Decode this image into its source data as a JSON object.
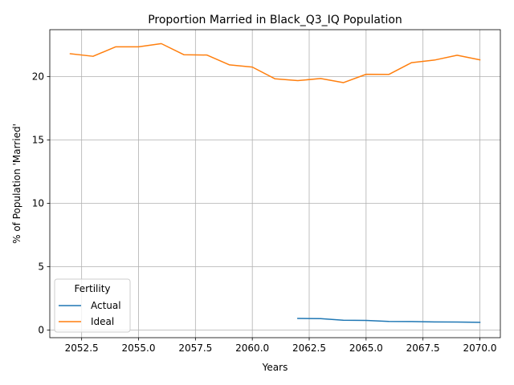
{
  "chart_data": {
    "type": "line",
    "title": "Proportion Married in Black_Q3_IQ Population",
    "xlabel": "Years",
    "ylabel": "% of Population 'Married'",
    "xlim": [
      2051.1,
      2070.9
    ],
    "ylim": [
      -0.6,
      23.7
    ],
    "xticks": [
      2052.5,
      2055.0,
      2057.5,
      2060.0,
      2062.5,
      2065.0,
      2067.5,
      2070.0
    ],
    "xtick_labels": [
      "2052.5",
      "2055.0",
      "2057.5",
      "2060.0",
      "2062.5",
      "2065.0",
      "2067.5",
      "2070.0"
    ],
    "yticks": [
      0,
      5,
      10,
      15,
      20
    ],
    "ytick_labels": [
      "0",
      "5",
      "10",
      "15",
      "20"
    ],
    "grid": true,
    "legend": {
      "title": "Fertility",
      "placement": "lower-left"
    },
    "series": [
      {
        "name": "Actual",
        "color": "#1f77b4",
        "x": [
          2062,
          2063,
          2064,
          2065,
          2066,
          2067,
          2068,
          2069,
          2070
        ],
        "y": [
          0.92,
          0.9,
          0.78,
          0.76,
          0.68,
          0.67,
          0.64,
          0.63,
          0.61
        ]
      },
      {
        "name": "Ideal",
        "color": "#ff7f0e",
        "x": [
          2052,
          2053,
          2054,
          2055,
          2056,
          2057,
          2058,
          2059,
          2060,
          2061,
          2062,
          2063,
          2064,
          2065,
          2066,
          2067,
          2068,
          2069,
          2070
        ],
        "y": [
          21.8,
          21.6,
          22.35,
          22.35,
          22.6,
          21.72,
          21.7,
          20.92,
          20.75,
          19.82,
          19.68,
          19.85,
          19.52,
          20.18,
          20.17,
          21.1,
          21.3,
          21.68,
          21.32
        ]
      }
    ]
  }
}
